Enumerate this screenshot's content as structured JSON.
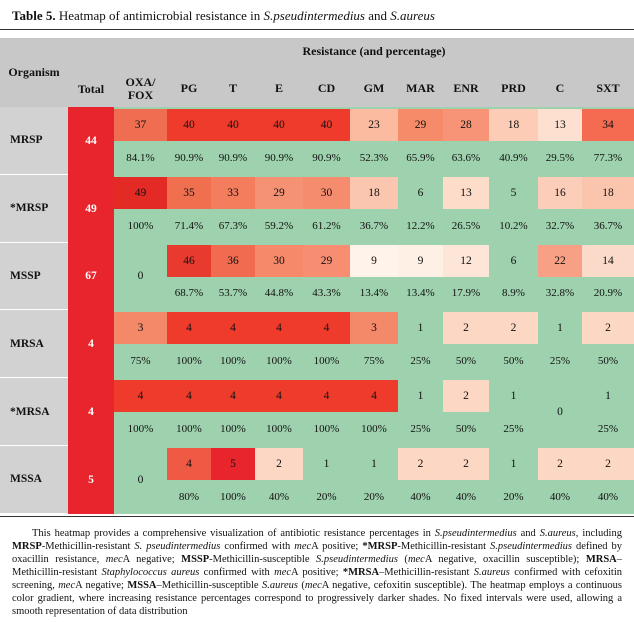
{
  "caption": {
    "label": "Table 5.",
    "text_before": " Heatmap of antimicrobial resistance in ",
    "species1": "S.pseudintermedius",
    "text_middle": " and ",
    "species2": "S.aureus"
  },
  "table": {
    "super_header": "Resistance (and percentage)",
    "organism_header": "Organism",
    "total_header": "Total",
    "antibiotics": [
      "OXA/\nFOX",
      "PG",
      "T",
      "E",
      "CD",
      "GM",
      "MAR",
      "ENR",
      "PRD",
      "C",
      "SXT"
    ],
    "rows": [
      {
        "organism": "MRSP",
        "total": "44",
        "counts": [
          "37",
          "40",
          "40",
          "40",
          "40",
          "23",
          "29",
          "28",
          "18",
          "13",
          "34"
        ],
        "percents": [
          "84.1%",
          "90.9%",
          "90.9%",
          "90.9%",
          "90.9%",
          "52.3%",
          "65.9%",
          "63.6%",
          "40.9%",
          "29.5%",
          "77.3%"
        ],
        "count_colors": [
          "#ef6e52",
          "#ef3b2c",
          "#ef3b2c",
          "#ef3b2c",
          "#ef3b2c",
          "#fbbba1",
          "#f68b6a",
          "#f79376",
          "#fcccb6",
          "#fde0d0",
          "#f46b52"
        ]
      },
      {
        "organism": "*MRSP",
        "total": "49",
        "counts": [
          "49",
          "35",
          "33",
          "29",
          "30",
          "18",
          "6",
          "13",
          "5",
          "16",
          "18"
        ],
        "percents": [
          "100%",
          "71.4%",
          "67.3%",
          "59.2%",
          "61.2%",
          "36.7%",
          "12.2%",
          "26.5%",
          "10.2%",
          "32.7%",
          "36.7%"
        ],
        "count_colors": [
          "#e32a24",
          "#f06f4f",
          "#f47d5e",
          "#f59273",
          "#f58c6d",
          "#fbc6af",
          "#9ed1ad",
          "#fddcca",
          "#9ed1ad",
          "#fccdb8",
          "#fbc4ad"
        ]
      },
      {
        "organism": "MSSP",
        "total": "67",
        "counts": [
          "0",
          "46",
          "36",
          "30",
          "29",
          "9",
          "9",
          "12",
          "6",
          "22",
          "14"
        ],
        "percents": [
          "",
          "68.7%",
          "53.7%",
          "44.8%",
          "43.3%",
          "13.4%",
          "13.4%",
          "17.9%",
          "8.9%",
          "32.8%",
          "20.9%"
        ],
        "count_colors": [
          "#9ed1ad",
          "#e93a2f",
          "#f06b4f",
          "#f7896b",
          "#f78e71",
          "#fff3ea",
          "#fff0e6",
          "#fde5d8",
          "#9ed1ad",
          "#f7a085",
          "#fcdaca"
        ]
      },
      {
        "organism": "MRSA",
        "total": "4",
        "counts": [
          "3",
          "4",
          "4",
          "4",
          "4",
          "3",
          "1",
          "2",
          "2",
          "1",
          "2"
        ],
        "percents": [
          "75%",
          "100%",
          "100%",
          "100%",
          "100%",
          "75%",
          "25%",
          "50%",
          "50%",
          "25%",
          "50%"
        ],
        "count_colors": [
          "#f4896a",
          "#ef3b2c",
          "#ef3b2c",
          "#ef3b2c",
          "#ef3b2c",
          "#f4896a",
          "#9ed1ad",
          "#fcd7c4",
          "#fcd7c4",
          "#9ed1ad",
          "#fcd7c4"
        ]
      },
      {
        "organism": "*MRSA",
        "total": "4",
        "counts": [
          "4",
          "4",
          "4",
          "4",
          "4",
          "4",
          "1",
          "2",
          "1",
          "0",
          "1"
        ],
        "percents": [
          "100%",
          "100%",
          "100%",
          "100%",
          "100%",
          "100%",
          "25%",
          "50%",
          "25%",
          "",
          "25%"
        ],
        "count_colors": [
          "#ef3b2c",
          "#ef3b2c",
          "#ef3b2c",
          "#ef3b2c",
          "#ef3b2c",
          "#ef3b2c",
          "#9ed1ad",
          "#fcd7c4",
          "#9ed1ad",
          "#9ed1ad",
          "#9ed1ad"
        ]
      },
      {
        "organism": "MSSA",
        "total": "5",
        "counts": [
          "0",
          "4",
          "5",
          "2",
          "1",
          "1",
          "2",
          "2",
          "1",
          "2",
          "2"
        ],
        "percents": [
          "",
          "80%",
          "100%",
          "40%",
          "20%",
          "20%",
          "40%",
          "40%",
          "20%",
          "40%",
          "40%"
        ],
        "count_colors": [
          "#9ed1ad",
          "#ef5a45",
          "#e8242c",
          "#fcd7c4",
          "#9ed1ad",
          "#9ed1ad",
          "#fcd7c4",
          "#fcd7c4",
          "#9ed1ad",
          "#fcd7c4",
          "#fcd7c4"
        ]
      }
    ]
  },
  "footnote": {
    "p1": "This heatmap provides a comprehensive visualization of antibiotic resistance percentages in ",
    "s1": "S.pseudintermedius",
    "p2": " and ",
    "s2": "S.aureus",
    "p3": ", including ",
    "b1": "MRSP",
    "p4": "-Methicillin-resistant ",
    "s3": "S. pseudintermedius",
    "p5": " confirmed with ",
    "g1": "mec",
    "p6": "A positive; ",
    "b2": "*MRSP",
    "p7": "-Methicillin-resistant ",
    "s4": "S.pseudintermedius",
    "p8": " defined by oxacillin resistance, ",
    "g2": "mec",
    "p9": "A negative; ",
    "b3": "MSSP",
    "p10": "-Methicillin-susceptible ",
    "s5": "S.pseudintermedius",
    "p11": " (",
    "g3": "mec",
    "p12": "A negative, oxacillin susceptible); ",
    "b4": "MRSA",
    "p13": "–Methicillin-resistant ",
    "s6": "Staphylococcus aureus",
    "p14": " confirmed with ",
    "g4": "mec",
    "p15": "A positive; ",
    "b5": "*MRSA",
    "p16": "–Methicillin-resistant ",
    "s7": "S.aureus",
    "p17": " confirmed with cefoxitin screening, ",
    "g5": "mec",
    "p18": "A negative; ",
    "b6": "MSSA",
    "p19": "–Methicillin-susceptible ",
    "s8": "S.aureus",
    "p20": " (",
    "g6": "mec",
    "p21": "A negative, cefoxitin susceptible). The heatmap employs a continuous color gradient, where increasing resistance percentages correspond to progressively darker shades. No fixed intervals were used, allowing a smooth representation of data distribution"
  },
  "colors": {
    "header_bg": "#c8c8c8",
    "total_bg": "#e8242c",
    "susceptible_bg": "#9ed1ad"
  }
}
